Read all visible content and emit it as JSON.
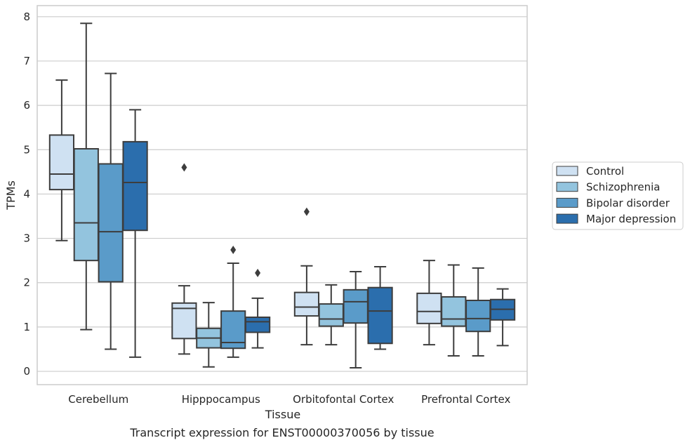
{
  "chart_data": {
    "type": "box",
    "xlabel": "Tissue",
    "ylabel": "TPMs",
    "caption": "Transcript expression for ENST00000370056 by tissue",
    "categories": [
      "Cerebellum",
      "Hipppocampus",
      "Orbitofontal Cortex",
      "Prefrontal Cortex"
    ],
    "ylim": [
      -0.3,
      8.25
    ],
    "yticks": [
      0,
      1,
      2,
      3,
      4,
      5,
      6,
      7,
      8
    ],
    "grid": true,
    "legend_position": "right",
    "series": [
      {
        "name": "Control",
        "color": "#cfe1f2",
        "boxes": [
          {
            "whislo": 2.95,
            "q1": 4.1,
            "med": 4.45,
            "q3": 5.33,
            "whishi": 6.57,
            "fliers": []
          },
          {
            "whislo": 0.39,
            "q1": 0.74,
            "med": 1.42,
            "q3": 1.54,
            "whishi": 1.93,
            "fliers": [
              4.6
            ]
          },
          {
            "whislo": 0.6,
            "q1": 1.25,
            "med": 1.45,
            "q3": 1.78,
            "whishi": 2.38,
            "fliers": [
              3.6
            ]
          },
          {
            "whislo": 0.6,
            "q1": 1.08,
            "med": 1.35,
            "q3": 1.76,
            "whishi": 2.5,
            "fliers": []
          }
        ]
      },
      {
        "name": "Schizophrenia",
        "color": "#93c4de",
        "boxes": [
          {
            "whislo": 0.94,
            "q1": 2.5,
            "med": 3.35,
            "q3": 5.02,
            "whishi": 7.85,
            "fliers": []
          },
          {
            "whislo": 0.1,
            "q1": 0.53,
            "med": 0.75,
            "q3": 0.97,
            "whishi": 1.55,
            "fliers": []
          },
          {
            "whislo": 0.6,
            "q1": 1.02,
            "med": 1.18,
            "q3": 1.52,
            "whishi": 1.95,
            "fliers": []
          },
          {
            "whislo": 0.35,
            "q1": 1.02,
            "med": 1.18,
            "q3": 1.68,
            "whishi": 2.4,
            "fliers": []
          }
        ]
      },
      {
        "name": "Bipolar disorder",
        "color": "#5a9bc9",
        "boxes": [
          {
            "whislo": 0.5,
            "q1": 2.02,
            "med": 3.15,
            "q3": 4.68,
            "whishi": 6.72,
            "fliers": []
          },
          {
            "whislo": 0.32,
            "q1": 0.52,
            "med": 0.65,
            "q3": 1.36,
            "whishi": 2.44,
            "fliers": [
              2.74
            ]
          },
          {
            "whislo": 0.08,
            "q1": 1.09,
            "med": 1.57,
            "q3": 1.84,
            "whishi": 2.25,
            "fliers": []
          },
          {
            "whislo": 0.35,
            "q1": 0.9,
            "med": 1.19,
            "q3": 1.6,
            "whishi": 2.33,
            "fliers": []
          }
        ]
      },
      {
        "name": "Major depression",
        "color": "#2b6ead",
        "boxes": [
          {
            "whislo": 0.32,
            "q1": 3.18,
            "med": 4.26,
            "q3": 5.18,
            "whishi": 5.9,
            "fliers": []
          },
          {
            "whislo": 0.53,
            "q1": 0.88,
            "med": 1.12,
            "q3": 1.22,
            "whishi": 1.65,
            "fliers": [
              2.22
            ]
          },
          {
            "whislo": 0.5,
            "q1": 0.63,
            "med": 1.36,
            "q3": 1.89,
            "whishi": 2.36,
            "fliers": []
          },
          {
            "whislo": 0.58,
            "q1": 1.16,
            "med": 1.4,
            "q3": 1.62,
            "whishi": 1.86,
            "fliers": []
          }
        ]
      }
    ]
  }
}
